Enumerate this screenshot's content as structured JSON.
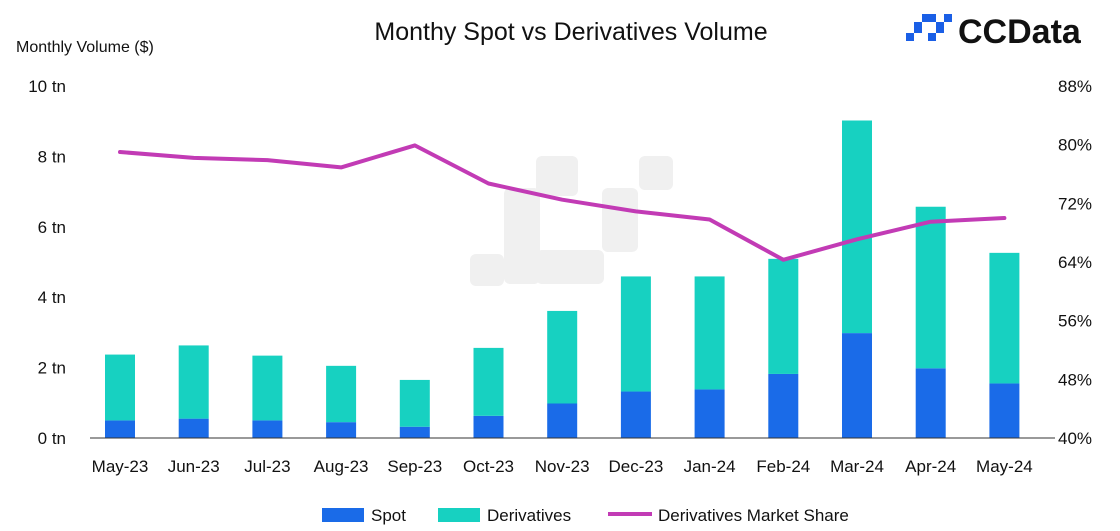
{
  "logo": {
    "text": "CCData",
    "color": "#1a5fe6"
  },
  "chart_data": {
    "type": "bar",
    "stacked": true,
    "title": "Monthy Spot vs Derivatives Volume",
    "ylabel": "Monthly Volume ($)",
    "categories": [
      "May-23",
      "Jun-23",
      "Jul-23",
      "Aug-23",
      "Sep-23",
      "Oct-23",
      "Nov-23",
      "Dec-23",
      "Jan-24",
      "Feb-24",
      "Mar-24",
      "Apr-24",
      "May-24"
    ],
    "series": [
      {
        "name": "Spot",
        "axis": "left",
        "color": "#1a6be8",
        "values": [
          0.5,
          0.55,
          0.5,
          0.45,
          0.32,
          0.63,
          0.98,
          1.32,
          1.38,
          1.82,
          2.98,
          1.98,
          1.55
        ]
      },
      {
        "name": "Derivatives",
        "axis": "left",
        "color": "#17d1c1",
        "values": [
          1.87,
          2.08,
          1.84,
          1.6,
          1.33,
          1.93,
          2.63,
          3.27,
          3.21,
          3.27,
          6.04,
          4.59,
          3.71
        ]
      },
      {
        "name": "Derivatives Market Share",
        "type": "line",
        "axis": "right",
        "color": "#c23bb5",
        "values": [
          79.0,
          78.2,
          77.9,
          76.9,
          79.9,
          74.7,
          72.5,
          70.9,
          69.8,
          64.3,
          67.1,
          69.5,
          70.0
        ]
      }
    ],
    "y_left": {
      "min": 0,
      "max": 10,
      "ticks": [
        0,
        2,
        4,
        6,
        8,
        10
      ],
      "tick_labels": [
        "0 tn",
        "2 tn",
        "4 tn",
        "6 tn",
        "8 tn",
        "10 tn"
      ]
    },
    "y_right": {
      "min": 40,
      "max": 88,
      "ticks": [
        40,
        48,
        56,
        64,
        72,
        80,
        88
      ],
      "tick_labels": [
        "40%",
        "48%",
        "56%",
        "64%",
        "72%",
        "80%",
        "88%"
      ]
    },
    "grid": false,
    "legend": {
      "position": "bottom"
    }
  }
}
